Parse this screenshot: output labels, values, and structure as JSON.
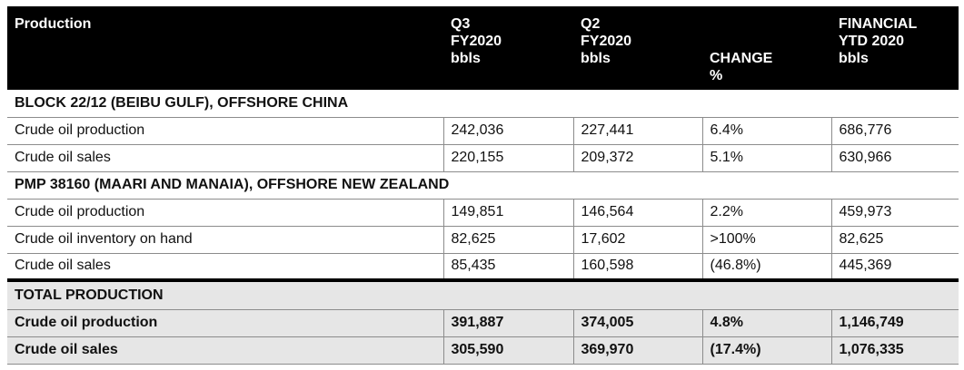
{
  "header": {
    "production": "Production",
    "q3": [
      "Q3",
      "FY2020",
      "bbls"
    ],
    "q2": [
      "Q2",
      "FY2020",
      "bbls"
    ],
    "change": [
      "CHANGE",
      "%"
    ],
    "ytd": [
      "FINANCIAL",
      "YTD 2020",
      "bbls"
    ]
  },
  "sections": [
    {
      "title": "BLOCK 22/12 (BEIBU GULF), OFFSHORE CHINA",
      "rows": [
        {
          "label": "Crude oil production",
          "q3": "242,036",
          "q2": "227,441",
          "change": "6.4%",
          "ytd": "686,776"
        },
        {
          "label": "Crude oil sales",
          "q3": "220,155",
          "q2": "209,372",
          "change": "5.1%",
          "ytd": "630,966"
        }
      ]
    },
    {
      "title": "PMP 38160 (MAARI AND MANAIA), OFFSHORE NEW ZEALAND",
      "rows": [
        {
          "label": "Crude oil production",
          "q3": "149,851",
          "q2": "146,564",
          "change": "2.2%",
          "ytd": "459,973"
        },
        {
          "label": "Crude oil inventory on hand",
          "q3": "82,625",
          "q2": "17,602",
          "change": ">100%",
          "ytd": "82,625"
        },
        {
          "label": "Crude oil sales",
          "q3": "85,435",
          "q2": "160,598",
          "change": "(46.8%)",
          "ytd": "445,369"
        }
      ]
    }
  ],
  "total": {
    "title": "TOTAL PRODUCTION",
    "rows": [
      {
        "label": "Crude oil production",
        "q3": "391,887",
        "q2": "374,005",
        "change": "4.8%",
        "ytd": "1,146,749"
      },
      {
        "label": "Crude oil sales",
        "q3": "305,590",
        "q2": "369,970",
        "change": "(17.4%)",
        "ytd": "1,076,335"
      }
    ]
  }
}
